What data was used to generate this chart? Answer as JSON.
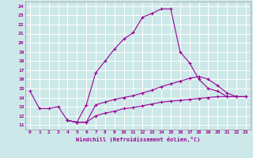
{
  "xlabel": "Windchill (Refroidissement éolien,°C)",
  "bg_color": "#cde8e8",
  "grid_color": "#b0d0d0",
  "line_color": "#990099",
  "x_ticks": [
    0,
    1,
    2,
    3,
    4,
    5,
    6,
    7,
    8,
    9,
    10,
    11,
    12,
    13,
    14,
    15,
    16,
    17,
    18,
    19,
    20,
    21,
    22,
    23
  ],
  "y_ticks": [
    11,
    12,
    13,
    14,
    15,
    16,
    17,
    18,
    19,
    20,
    21,
    22,
    23,
    24
  ],
  "xlim": [
    -0.5,
    23.5
  ],
  "ylim": [
    10.5,
    24.5
  ],
  "series": {
    "line1": {
      "x": [
        0,
        1,
        2,
        3,
        4,
        5,
        6,
        7,
        8,
        9,
        10,
        11,
        12,
        13,
        14,
        15,
        16,
        17,
        18,
        19,
        20,
        21,
        22
      ],
      "y": [
        14.7,
        12.8,
        12.8,
        13.0,
        11.5,
        11.3,
        13.2,
        16.7,
        18.0,
        19.3,
        20.4,
        21.1,
        22.8,
        23.2,
        23.7,
        23.7,
        19.0,
        17.8,
        16.0,
        15.0,
        14.7,
        14.1,
        14.1
      ]
    },
    "line2": {
      "x": [
        4,
        5,
        6,
        7,
        8,
        9,
        10,
        11,
        12,
        13,
        14,
        15,
        16,
        17,
        18,
        19,
        20,
        21,
        22,
        23
      ],
      "y": [
        11.5,
        11.3,
        11.3,
        13.2,
        13.5,
        13.8,
        14.0,
        14.2,
        14.5,
        14.8,
        15.2,
        15.5,
        15.8,
        16.1,
        16.3,
        16.0,
        15.3,
        14.5,
        14.1,
        14.1
      ]
    },
    "line3": {
      "x": [
        4,
        5,
        6,
        7,
        8,
        9,
        10,
        11,
        12,
        13,
        14,
        15,
        16,
        17,
        18,
        19,
        20,
        21,
        22,
        23
      ],
      "y": [
        11.5,
        11.3,
        11.3,
        12.0,
        12.3,
        12.5,
        12.8,
        12.9,
        13.1,
        13.3,
        13.5,
        13.6,
        13.7,
        13.8,
        13.9,
        14.0,
        14.1,
        14.1,
        14.1,
        14.1
      ]
    }
  }
}
